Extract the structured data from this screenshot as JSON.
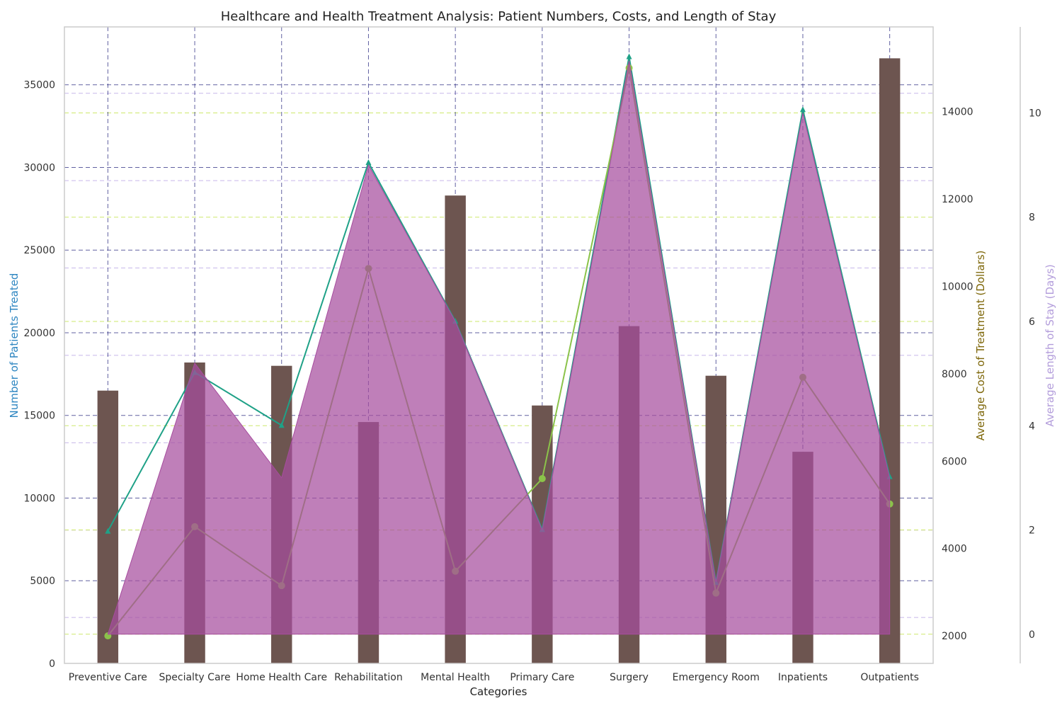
{
  "chart_data": {
    "type": "bar",
    "title": "Healthcare and Health Treatment Analysis: Patient Numbers, Costs, and Length of Stay",
    "xlabel": "Categories",
    "categories": [
      "Preventive Care",
      "Specialty Care",
      "Home Health Care",
      "Rehabilitation",
      "Mental Health",
      "Primary Care",
      "Surgery",
      "Emergency Room",
      "Inpatients",
      "Outpatients"
    ],
    "axes": {
      "left": {
        "label": "Number of Patients Treated",
        "ylim": [
          0,
          38500
        ],
        "ticks": [
          0,
          5000,
          10000,
          15000,
          20000,
          25000,
          30000,
          35000
        ],
        "color": "#2e86c1"
      },
      "right1": {
        "label": "Average Cost of Treatment (Dollars)",
        "ylim": [
          1370,
          15940
        ],
        "ticks": [
          2000,
          4000,
          6000,
          8000,
          10000,
          12000,
          14000
        ],
        "color": "#7d6608"
      },
      "right2": {
        "label": "Average Length of Stay (Days)",
        "ylim": [
          -0.56,
          11.65
        ],
        "ticks": [
          0,
          2,
          4,
          6,
          8,
          10
        ],
        "color": "#b39ddb"
      }
    },
    "grid": true,
    "series": [
      {
        "kind": "bar",
        "axis": "left",
        "color": "#6d5550",
        "values": [
          16500,
          18200,
          18000,
          14600,
          28300,
          15600,
          20400,
          17400,
          12800,
          36600
        ]
      },
      {
        "kind": "line",
        "axis": "left",
        "color": "#1fa187",
        "marker": "triangle",
        "values": [
          8000,
          17600,
          14400,
          30300,
          20700,
          8100,
          36700,
          4900,
          33500,
          11300
        ]
      },
      {
        "kind": "line",
        "axis": "right1",
        "color": "#8bc34a",
        "marker": "circle",
        "values": [
          2000,
          4500,
          3150,
          10410,
          3480,
          5600,
          15000,
          2980,
          7920,
          5020
        ]
      },
      {
        "kind": "area",
        "axis": "right2",
        "color": "#a64d9e",
        "opacity": 0.72,
        "values": [
          0,
          5.2,
          3.0,
          9,
          6,
          2,
          11,
          1,
          10,
          3
        ]
      }
    ]
  }
}
